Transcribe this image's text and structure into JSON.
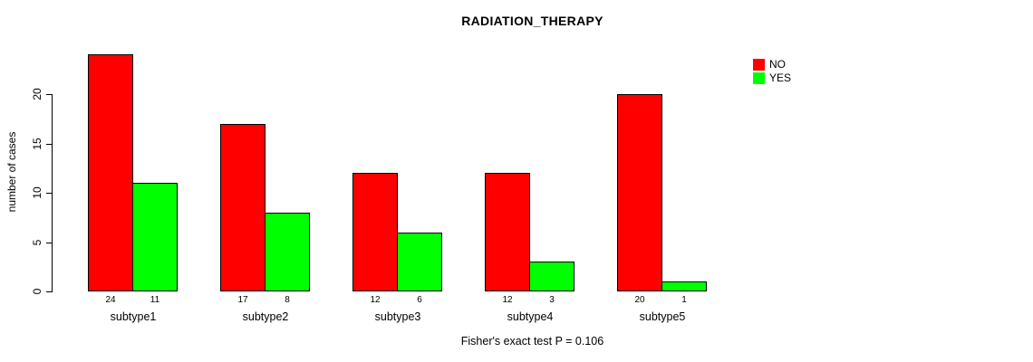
{
  "chart_data": {
    "type": "bar",
    "title": "RADIATION_THERAPY",
    "xlabel": "",
    "ylabel": "number of cases",
    "categories": [
      "subtype1",
      "subtype2",
      "subtype3",
      "subtype4",
      "subtype5"
    ],
    "series": [
      {
        "name": "NO",
        "color": "#ff0000",
        "values": [
          24,
          17,
          12,
          12,
          20
        ]
      },
      {
        "name": "YES",
        "color": "#00ff00",
        "values": [
          11,
          8,
          6,
          3,
          1
        ]
      }
    ],
    "bar_value_labels": {
      "NO": [
        "24",
        "17",
        "12",
        "12",
        "20"
      ],
      "YES": [
        "11",
        "8",
        "6",
        "3",
        "1"
      ]
    },
    "yticks": [
      0,
      5,
      10,
      15,
      20
    ],
    "ylim": [
      0,
      24
    ],
    "grid": false,
    "legend_position": "top-right",
    "annotation": "Fisher's exact test P = 0.106"
  }
}
